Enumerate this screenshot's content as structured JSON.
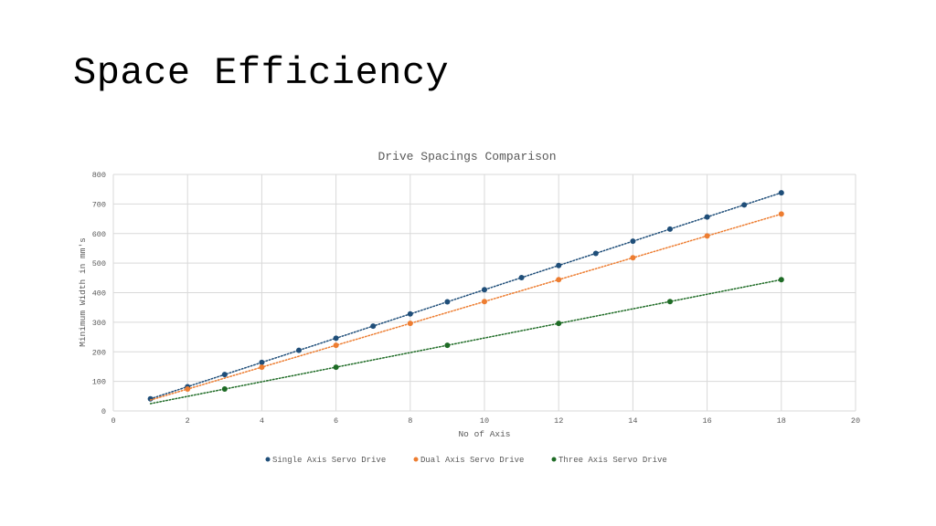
{
  "slide": {
    "title": "Space Efficiency"
  },
  "chart_data": {
    "type": "scatter",
    "title": "Drive Spacings Comparison",
    "xlabel": "No of Axis",
    "ylabel": "Minimum Width in mm's",
    "xlim": [
      0,
      20
    ],
    "ylim": [
      0,
      800
    ],
    "xticks": [
      0,
      2,
      4,
      6,
      8,
      10,
      12,
      14,
      16,
      18,
      20
    ],
    "yticks": [
      0,
      100,
      200,
      300,
      400,
      500,
      600,
      700,
      800
    ],
    "grid": true,
    "trendlines": true,
    "legend_position": "bottom",
    "series": [
      {
        "name": "Single Axis Servo Drive",
        "color": "#1f4e79",
        "x": [
          1,
          2,
          3,
          4,
          5,
          6,
          7,
          8,
          9,
          10,
          11,
          12,
          13,
          14,
          15,
          16,
          17,
          18
        ],
        "y": [
          41,
          82,
          123,
          164,
          205,
          246,
          287,
          328,
          369,
          410,
          451,
          492,
          533,
          574,
          615,
          656,
          697,
          738
        ]
      },
      {
        "name": "Dual Axis Servo Drive",
        "color": "#ed7d31",
        "x": [
          2,
          4,
          6,
          8,
          10,
          12,
          14,
          16,
          18
        ],
        "y": [
          74,
          148,
          222,
          296,
          370,
          444,
          518,
          592,
          666
        ]
      },
      {
        "name": "Three Axis Servo Drive",
        "color": "#1e6b25",
        "x": [
          3,
          6,
          9,
          12,
          15,
          18
        ],
        "y": [
          74,
          148,
          222,
          296,
          370,
          444
        ]
      }
    ]
  }
}
